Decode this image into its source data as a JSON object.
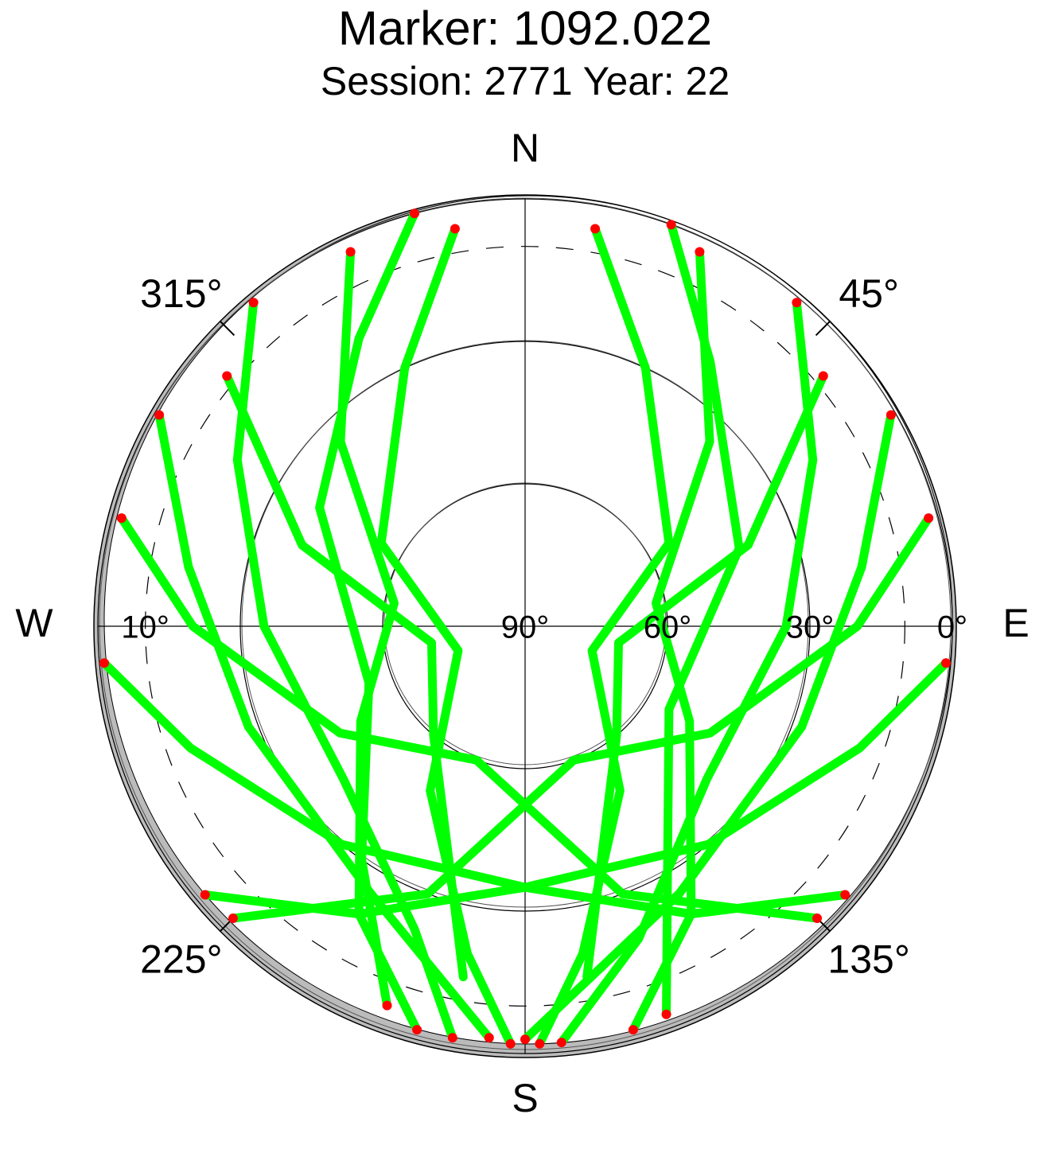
{
  "chart_data": {
    "type": "skyplot",
    "title": "Marker: 1092.022",
    "subtitle": "Session: 2771 Year: 22",
    "rlim": [
      90,
      0
    ],
    "rticks": [
      {
        "value": 90,
        "label": "90°"
      },
      {
        "value": 60,
        "label": "60°"
      },
      {
        "value": 30,
        "label": "30°"
      },
      {
        "value": 0,
        "label": "0°"
      }
    ],
    "mask": {
      "value": 10,
      "label": "10°"
    },
    "cardinals": [
      {
        "value": 0,
        "label": "N"
      },
      {
        "value": 90,
        "label": "E"
      },
      {
        "value": 180,
        "label": "S"
      },
      {
        "value": 270,
        "label": "W"
      }
    ],
    "azticks": [
      {
        "value": 45,
        "label": "45°"
      },
      {
        "value": 135,
        "label": "135°"
      },
      {
        "value": 225,
        "label": "225°"
      },
      {
        "value": 315,
        "label": "315°"
      }
    ],
    "color": "#00ff00",
    "below_mask_color": "#ff0000",
    "tracks": [
      {
        "azimuth": [
          345,
          330,
          300,
          250,
          215,
          200
        ],
        "elevation": [
          0,
          20,
          40,
          55,
          30,
          5
        ]
      },
      {
        "azimuth": [
          20,
          35,
          70,
          120,
          150,
          160
        ],
        "elevation": [
          0,
          22,
          42,
          55,
          30,
          3
        ]
      },
      {
        "azimuth": [
          40,
          60,
          90,
          130,
          160,
          175
        ],
        "elevation": [
          1,
          20,
          35,
          40,
          20,
          2
        ]
      },
      {
        "azimuth": [
          320,
          300,
          270,
          230,
          200,
          190
        ],
        "elevation": [
          1,
          20,
          35,
          40,
          22,
          2
        ]
      },
      {
        "azimuth": [
          10,
          25,
          60,
          110,
          150,
          170,
          178
        ],
        "elevation": [
          5,
          30,
          55,
          75,
          50,
          20,
          2
        ]
      },
      {
        "azimuth": [
          350,
          335,
          300,
          250,
          210,
          190,
          182
        ],
        "elevation": [
          5,
          30,
          55,
          75,
          50,
          20,
          2
        ]
      },
      {
        "azimuth": [
          60,
          80,
          110,
          150,
          180
        ],
        "elevation": [
          1,
          18,
          28,
          25,
          3
        ]
      },
      {
        "azimuth": [
          300,
          280,
          250,
          210,
          185
        ],
        "elevation": [
          1,
          18,
          28,
          25,
          3
        ]
      },
      {
        "azimuth": [
          75,
          90,
          120,
          160,
          200,
          225
        ],
        "elevation": [
          2,
          20,
          45,
          60,
          30,
          3
        ]
      },
      {
        "azimuth": [
          285,
          270,
          240,
          200,
          160,
          135
        ],
        "elevation": [
          2,
          20,
          45,
          60,
          30,
          3
        ]
      },
      {
        "azimuth": [
          95,
          110,
          140,
          180,
          210,
          230
        ],
        "elevation": [
          1,
          15,
          30,
          35,
          20,
          2
        ]
      },
      {
        "azimuth": [
          265,
          250,
          220,
          180,
          150,
          130
        ],
        "elevation": [
          1,
          15,
          30,
          35,
          20,
          2
        ]
      },
      {
        "azimuth": [
          50,
          70,
          100,
          140,
          170
        ],
        "elevation": [
          8,
          40,
          70,
          60,
          15
        ]
      },
      {
        "azimuth": [
          310,
          290,
          260,
          220,
          190
        ],
        "elevation": [
          8,
          40,
          70,
          60,
          15
        ]
      },
      {
        "azimuth": [
          25,
          45,
          80,
          120,
          150,
          165
        ],
        "elevation": [
          3,
          35,
          62,
          50,
          20,
          2
        ]
      },
      {
        "azimuth": [
          335,
          315,
          280,
          240,
          210,
          195
        ],
        "elevation": [
          3,
          35,
          62,
          50,
          20,
          2
        ]
      }
    ]
  }
}
